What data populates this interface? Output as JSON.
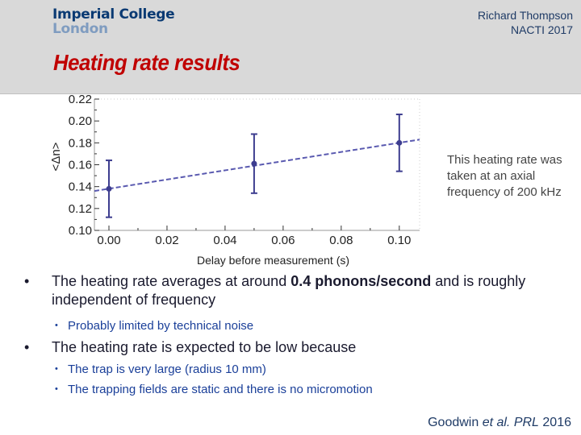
{
  "header": {
    "logo_line1": "Imperial College",
    "logo_line2": "London",
    "author": "Richard Thompson",
    "event": "NACTI 2017",
    "title": "Heating rate results"
  },
  "chart_data": {
    "type": "scatter",
    "xlabel": "Delay before measurement (s)",
    "ylabel": "<Δn>",
    "xlim": [
      -0.005,
      0.107
    ],
    "ylim": [
      0.1,
      0.22
    ],
    "x_ticks": [
      "0.00",
      "0.02",
      "0.04",
      "0.06",
      "0.08",
      "0.10"
    ],
    "y_ticks": [
      "0.22",
      "0.20",
      "0.18",
      "0.16",
      "0.14",
      "0.12",
      "0.10"
    ],
    "x_tick_values": [
      0.0,
      0.02,
      0.04,
      0.06,
      0.08,
      0.1
    ],
    "y_tick_values": [
      0.22,
      0.2,
      0.18,
      0.16,
      0.14,
      0.12,
      0.1
    ],
    "grid": false,
    "points": [
      {
        "x": 0.0,
        "y": 0.138,
        "yerr": 0.026
      },
      {
        "x": 0.05,
        "y": 0.161,
        "yerr": 0.027
      },
      {
        "x": 0.1,
        "y": 0.18,
        "yerr": 0.026
      }
    ],
    "fit_line": {
      "style": "dashed",
      "x": [
        -0.005,
        0.107
      ],
      "y": [
        0.136,
        0.183
      ]
    },
    "colors": {
      "points": "#3d3d8f",
      "fit": "#5a5ab0",
      "frame": "#999999",
      "ticks": "#333333"
    }
  },
  "note": "This heating rate was taken at an axial frequency of 200 kHz",
  "bullets": [
    {
      "before": "The heating rate averages at around ",
      "bold": "0.4 phonons/second",
      "after": " and is roughly independent of frequency"
    },
    {
      "text": "Probably limited by technical noise"
    },
    {
      "text": "The heating rate is expected to be low because"
    },
    {
      "text": "The trap is very large (radius 10 mm)"
    },
    {
      "text": "The trapping fields are static and there is no micromotion"
    }
  ],
  "citation": {
    "author": "Goodwin ",
    "etal": "et al.",
    "journal": "PRL",
    "year": "2016"
  }
}
